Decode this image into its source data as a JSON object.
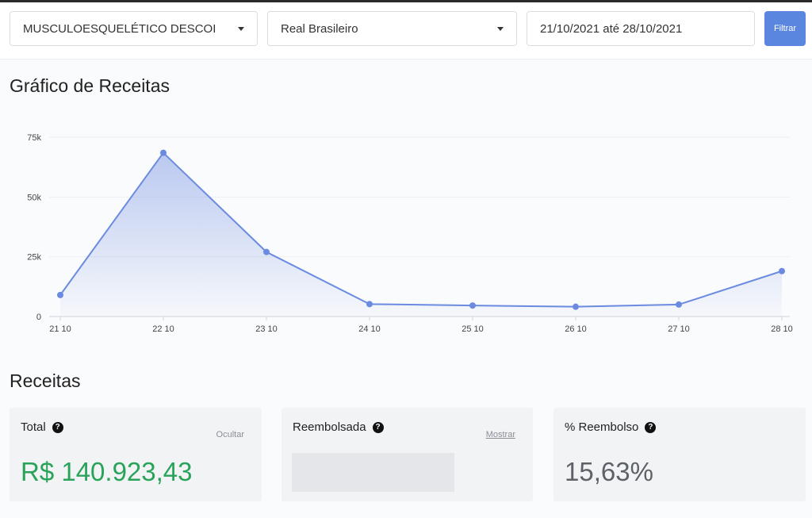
{
  "filters": {
    "product": "MUSCULOESQUELÉTICO DESCOI",
    "currency": "Real Brasileiro",
    "date_range": "21/10/2021 até 28/10/2021",
    "filter_label": "Filtrar"
  },
  "chart_section": {
    "title": "Gráfico de Receitas"
  },
  "chart_data": {
    "type": "area",
    "title": "",
    "xlabel": "",
    "ylabel": "",
    "categories": [
      "21 10",
      "22 10",
      "23 10",
      "24 10",
      "25 10",
      "26 10",
      "27 10",
      "28 10"
    ],
    "values": [
      9000,
      68500,
      27000,
      5200,
      4600,
      4100,
      5000,
      19000
    ],
    "ylim": [
      0,
      75000
    ],
    "yticks": [
      0,
      25000,
      50000,
      75000
    ],
    "ytick_labels": [
      "0",
      "25k",
      "50k",
      "75k"
    ],
    "grid": true,
    "legend": "none",
    "color": "#6b8be0"
  },
  "revenue_section": {
    "title": "Receitas"
  },
  "cards": {
    "total": {
      "label": "Total",
      "toggle": "Ocultar",
      "value": "R$ 140.923,43"
    },
    "refunded": {
      "label": "Reembolsada",
      "toggle": "Mostrar"
    },
    "refund_pct": {
      "label": "% Reembolso",
      "value": "15,63%"
    }
  },
  "help_icon_glyph": "?",
  "icons": {
    "help": "question-circle-icon",
    "dropdown": "caret-down-icon"
  },
  "colors": {
    "primary": "#5a86e0",
    "positive": "#2aa35a",
    "line": "#6b8be0"
  }
}
